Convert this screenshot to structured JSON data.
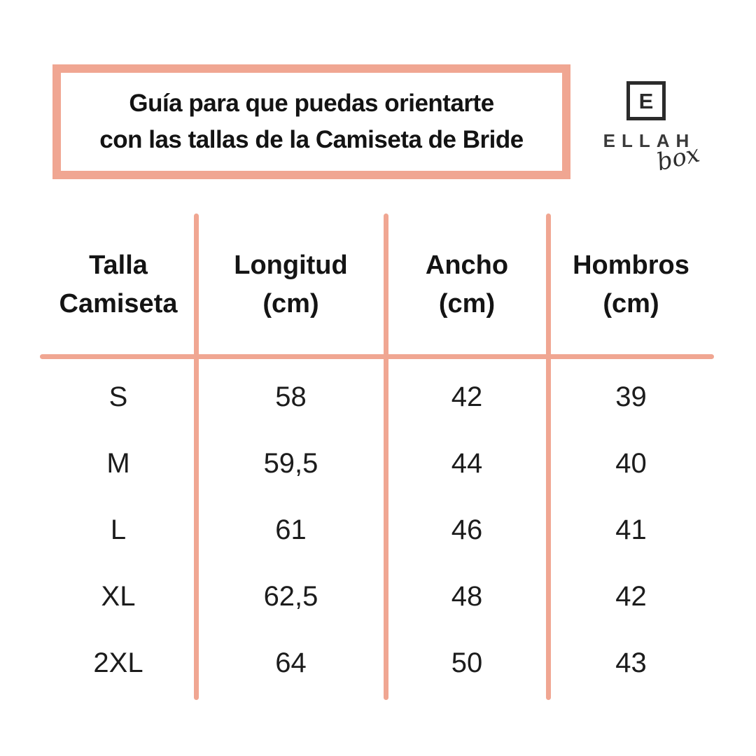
{
  "colors": {
    "accent_salmon": "#F0A692",
    "logo_ink": "#2b2b2b",
    "text_ink": "#161616",
    "background": "#FFFFFF"
  },
  "header": {
    "title_line1": "Guía para que puedas orientarte",
    "title_line2": "con las tallas de la Camiseta de Bride"
  },
  "logo": {
    "monogram": "E",
    "brand": "ELLAH",
    "tagline": "box"
  },
  "size_table": {
    "columns": [
      {
        "line1": "Talla",
        "line2": "Camiseta"
      },
      {
        "line1": "Longitud",
        "line2": "(cm)"
      },
      {
        "line1": "Ancho",
        "line2": "(cm)"
      },
      {
        "line1": "Hombros",
        "line2": "(cm)"
      }
    ],
    "rows": [
      {
        "size": "S",
        "longitud": "58",
        "ancho": "42",
        "hombros": "39"
      },
      {
        "size": "M",
        "longitud": "59,5",
        "ancho": "44",
        "hombros": "40"
      },
      {
        "size": "L",
        "longitud": "61",
        "ancho": "46",
        "hombros": "41"
      },
      {
        "size": "XL",
        "longitud": "62,5",
        "ancho": "48",
        "hombros": "42"
      },
      {
        "size": "2XL",
        "longitud": "64",
        "ancho": "50",
        "hombros": "43"
      }
    ]
  }
}
